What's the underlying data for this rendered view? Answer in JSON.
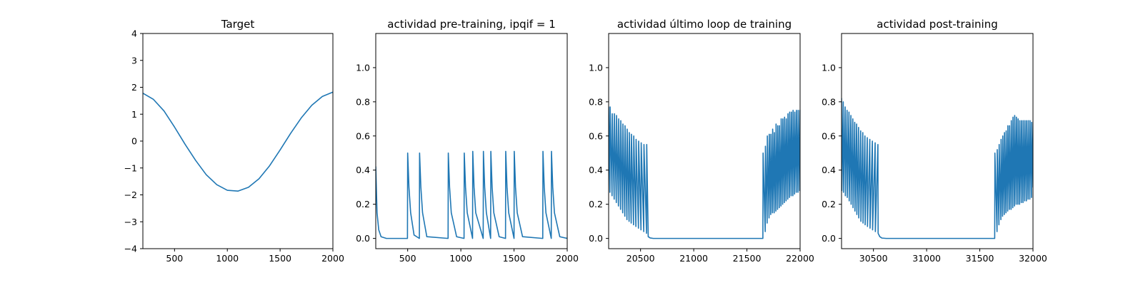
{
  "chart_data": [
    {
      "type": "line",
      "title": "Target",
      "xlim": [
        200,
        2000
      ],
      "ylim": [
        -4,
        4
      ],
      "xticks": [
        500,
        1000,
        1500,
        2000
      ],
      "xtick_labels": [
        "500",
        "1000",
        "1500",
        "2000"
      ],
      "yticks": [
        -4,
        -3,
        -2,
        -1,
        0,
        1,
        2,
        3,
        4
      ],
      "ytick_labels": [
        "−4",
        "−3",
        "−2",
        "−1",
        "0",
        "1",
        "2",
        "3",
        "4"
      ],
      "series": [
        {
          "color": "#1f77b4",
          "x": [
            200,
            300,
            400,
            500,
            600,
            700,
            800,
            900,
            1000,
            1100,
            1200,
            1300,
            1400,
            1500,
            1600,
            1700,
            1800,
            1900,
            2000
          ],
          "y": [
            1.78,
            1.55,
            1.12,
            0.52,
            -0.12,
            -0.72,
            -1.25,
            -1.62,
            -1.83,
            -1.86,
            -1.72,
            -1.4,
            -0.92,
            -0.33,
            0.29,
            0.86,
            1.33,
            1.66,
            1.82
          ]
        }
      ]
    },
    {
      "type": "line",
      "title": "actividad pre-training, ipqif = 1",
      "xlim": [
        200,
        2000
      ],
      "ylim": [
        -0.06,
        1.2
      ],
      "xticks": [
        500,
        1000,
        1500,
        2000
      ],
      "xtick_labels": [
        "500",
        "1000",
        "1500",
        "2000"
      ],
      "yticks": [
        0,
        0.2,
        0.4,
        0.6,
        0.8,
        1.0
      ],
      "ytick_labels": [
        "0.0",
        "0.2",
        "0.4",
        "0.6",
        "0.8",
        "1.0"
      ],
      "series": [
        {
          "color": "#1f77b4",
          "x": [
            200,
            212,
            228,
            250,
            300,
            498,
            500,
            512,
            528,
            560,
            610,
            612,
            624,
            640,
            680,
            880,
            882,
            894,
            910,
            960,
            1030,
            1032,
            1044,
            1060,
            1110,
            1112,
            1124,
            1140,
            1210,
            1212,
            1224,
            1240,
            1280,
            1282,
            1294,
            1310,
            1360,
            1420,
            1422,
            1434,
            1450,
            1500,
            1502,
            1514,
            1530,
            1580,
            1770,
            1772,
            1784,
            1800,
            1850,
            1852,
            1864,
            1880,
            1930,
            2000
          ],
          "y": [
            0.42,
            0.15,
            0.05,
            0.01,
            0.0,
            0.0,
            0.5,
            0.3,
            0.15,
            0.02,
            0.0,
            0.5,
            0.3,
            0.15,
            0.01,
            0.0,
            0.5,
            0.3,
            0.15,
            0.01,
            0.0,
            0.5,
            0.3,
            0.15,
            0.0,
            0.51,
            0.3,
            0.15,
            0.0,
            0.51,
            0.3,
            0.15,
            0.0,
            0.51,
            0.3,
            0.15,
            0.01,
            0.0,
            0.51,
            0.3,
            0.15,
            0.0,
            0.51,
            0.3,
            0.15,
            0.01,
            0.0,
            0.51,
            0.3,
            0.15,
            0.0,
            0.51,
            0.3,
            0.15,
            0.01,
            0.0
          ]
        }
      ]
    },
    {
      "type": "line",
      "title": "actividad último loop de training",
      "xlim": [
        20200,
        22000
      ],
      "ylim": [
        -0.06,
        1.2
      ],
      "xticks": [
        20500,
        21000,
        21500,
        22000
      ],
      "xtick_labels": [
        "20500",
        "21000",
        "21500",
        "22000"
      ],
      "yticks": [
        0,
        0.2,
        0.4,
        0.6,
        0.8,
        1.0
      ],
      "ytick_labels": [
        "0.0",
        "0.2",
        "0.4",
        "0.6",
        "0.8",
        "1.0"
      ],
      "series": [
        {
          "color": "#1f77b4",
          "x": [
            20200,
            20212,
            20214,
            20232,
            20234,
            20252,
            20254,
            20272,
            20274,
            20292,
            20294,
            20312,
            20314,
            20332,
            20334,
            20352,
            20354,
            20372,
            20374,
            20392,
            20394,
            20412,
            20414,
            20434,
            20436,
            20456,
            20458,
            20480,
            20482,
            20504,
            20506,
            20530,
            20532,
            20556,
            20558,
            20572,
            20590,
            20620,
            21650,
            21652,
            21672,
            21674,
            21690,
            21692,
            21708,
            21710,
            21724,
            21726,
            21740,
            21742,
            21756,
            21758,
            21772,
            21774,
            21788,
            21790,
            21804,
            21806,
            21820,
            21822,
            21836,
            21838,
            21852,
            21854,
            21868,
            21870,
            21884,
            21886,
            21900,
            21902,
            21916,
            21918,
            21932,
            21934,
            21948,
            21950,
            21964,
            21966,
            21980,
            21982,
            21996,
            21998,
            22000
          ],
          "y": [
            0.77,
            0.27,
            0.77,
            0.25,
            0.73,
            0.23,
            0.73,
            0.21,
            0.72,
            0.19,
            0.7,
            0.17,
            0.69,
            0.15,
            0.67,
            0.13,
            0.66,
            0.11,
            0.64,
            0.1,
            0.62,
            0.09,
            0.61,
            0.08,
            0.6,
            0.07,
            0.58,
            0.06,
            0.57,
            0.05,
            0.56,
            0.04,
            0.55,
            0.03,
            0.55,
            0.01,
            0.003,
            0.0,
            0.0,
            0.5,
            0.04,
            0.54,
            0.09,
            0.6,
            0.12,
            0.61,
            0.14,
            0.61,
            0.15,
            0.64,
            0.15,
            0.62,
            0.16,
            0.67,
            0.17,
            0.66,
            0.18,
            0.66,
            0.19,
            0.7,
            0.2,
            0.7,
            0.21,
            0.71,
            0.22,
            0.7,
            0.23,
            0.73,
            0.24,
            0.74,
            0.25,
            0.74,
            0.25,
            0.75,
            0.26,
            0.74,
            0.27,
            0.75,
            0.27,
            0.75,
            0.28,
            0.75,
            0.3
          ]
        }
      ]
    },
    {
      "type": "line",
      "title": "actividad post-training",
      "xlim": [
        30200,
        32000
      ],
      "ylim": [
        -0.06,
        1.2
      ],
      "xticks": [
        30500,
        31000,
        31500,
        32000
      ],
      "xtick_labels": [
        "30500",
        "31000",
        "31500",
        "32000"
      ],
      "yticks": [
        0,
        0.2,
        0.4,
        0.6,
        0.8,
        1.0
      ],
      "ytick_labels": [
        "0.0",
        "0.2",
        "0.4",
        "0.6",
        "0.8",
        "1.0"
      ],
      "series": [
        {
          "color": "#1f77b4",
          "x": [
            30200,
            30202,
            30216,
            30218,
            30234,
            30236,
            30252,
            30254,
            30270,
            30272,
            30288,
            30290,
            30306,
            30308,
            30324,
            30326,
            30342,
            30344,
            30360,
            30362,
            30380,
            30382,
            30400,
            30402,
            30420,
            30422,
            30442,
            30444,
            30466,
            30468,
            30490,
            30492,
            30516,
            30518,
            30542,
            30544,
            30560,
            30580,
            30620,
            31640,
            31642,
            31662,
            31664,
            31680,
            31682,
            31698,
            31700,
            31714,
            31716,
            31730,
            31732,
            31746,
            31748,
            31762,
            31764,
            31778,
            31780,
            31794,
            31796,
            31810,
            31812,
            31826,
            31828,
            31842,
            31844,
            31858,
            31860,
            31874,
            31876,
            31890,
            31892,
            31906,
            31908,
            31922,
            31924,
            31938,
            31940,
            31954,
            31956,
            31970,
            31972,
            31986,
            31988,
            32000
          ],
          "y": [
            0.82,
            0.28,
            0.8,
            0.27,
            0.77,
            0.25,
            0.75,
            0.24,
            0.74,
            0.22,
            0.72,
            0.2,
            0.7,
            0.18,
            0.68,
            0.16,
            0.67,
            0.14,
            0.65,
            0.12,
            0.63,
            0.1,
            0.62,
            0.09,
            0.6,
            0.08,
            0.59,
            0.07,
            0.58,
            0.06,
            0.57,
            0.05,
            0.56,
            0.04,
            0.55,
            0.03,
            0.01,
            0.002,
            0.0,
            0.0,
            0.5,
            0.04,
            0.52,
            0.08,
            0.55,
            0.11,
            0.58,
            0.13,
            0.6,
            0.14,
            0.62,
            0.15,
            0.63,
            0.16,
            0.66,
            0.17,
            0.66,
            0.17,
            0.69,
            0.18,
            0.71,
            0.19,
            0.72,
            0.2,
            0.71,
            0.2,
            0.7,
            0.2,
            0.69,
            0.21,
            0.69,
            0.21,
            0.69,
            0.22,
            0.69,
            0.22,
            0.69,
            0.23,
            0.69,
            0.23,
            0.69,
            0.24,
            0.68,
            0.3
          ]
        }
      ]
    }
  ]
}
